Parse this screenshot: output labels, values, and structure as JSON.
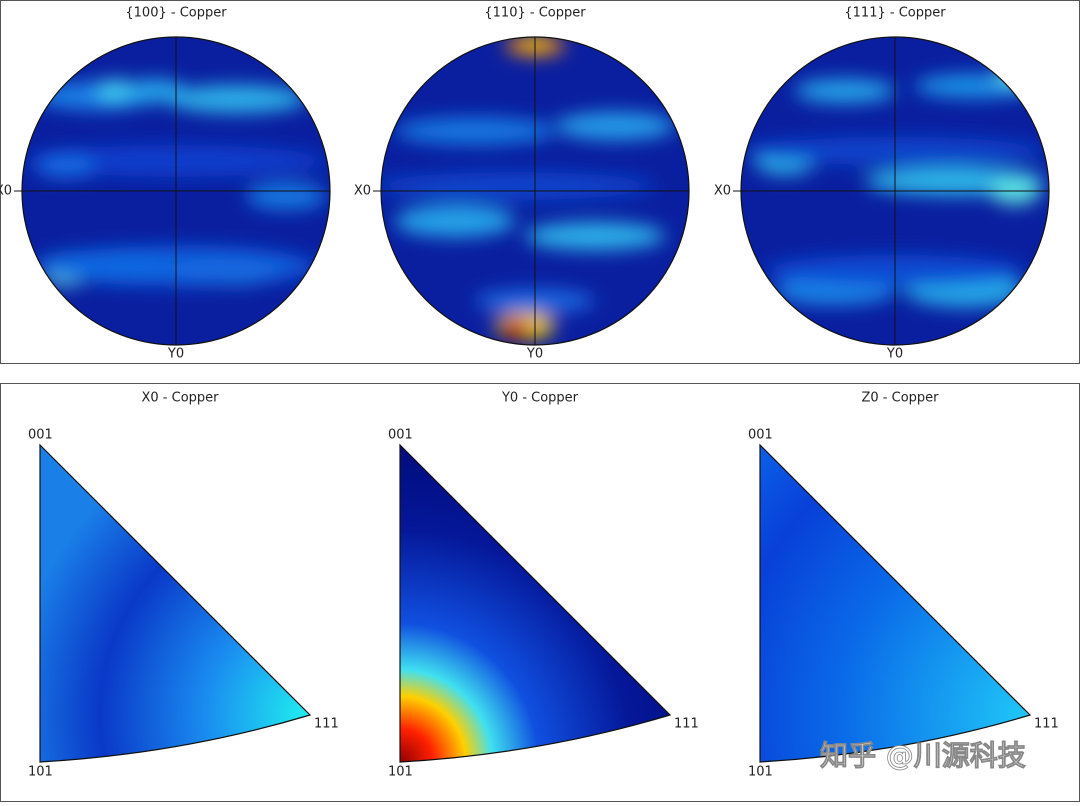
{
  "top_panel": {
    "pole_figures": [
      {
        "title": "{100} - Copper",
        "x_label": "X0",
        "y_label": "Y0"
      },
      {
        "title": "{110} - Copper",
        "x_label": "X0",
        "y_label": "Y0"
      },
      {
        "title": "{111} - Copper",
        "x_label": "X0",
        "y_label": "Y0"
      }
    ]
  },
  "bottom_panel": {
    "inverse_pole_figures": [
      {
        "title": "X0 - Copper",
        "corners": [
          "001",
          "111",
          "101"
        ]
      },
      {
        "title": "Y0 - Copper",
        "corners": [
          "001",
          "111",
          "101"
        ]
      },
      {
        "title": "Z0 - Copper",
        "corners": [
          "001",
          "111",
          "101"
        ]
      }
    ]
  },
  "watermark": "知乎 @川源科技"
}
